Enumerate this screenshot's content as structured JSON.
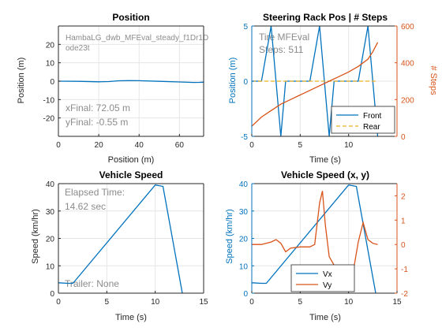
{
  "colors": {
    "blue": "#0072BD",
    "orange": "#D95319",
    "yellow": "#EDB120",
    "annot": "#8c8c8c",
    "grid": "#e6e6e6",
    "axis": "#262626"
  },
  "chart_data": [
    {
      "id": "position",
      "type": "line",
      "title": "Position",
      "xlabel": "Position (m)",
      "ylabel": "Position (m)",
      "xlim": [
        0,
        72
      ],
      "ylim": [
        -30,
        30
      ],
      "xticks": [
        0,
        20,
        40,
        60
      ],
      "yticks": [
        -20,
        -10,
        0,
        10,
        20
      ],
      "grid": true,
      "annotations": [
        "HambaLG_dwb_MFEval_steady_f1Dr1D",
        "ode23t",
        "xFinal: 72.05 m",
        "yFinal: -0.55 m"
      ],
      "series": [
        {
          "x": [
            0,
            10,
            20,
            25,
            30,
            35,
            40,
            50,
            60,
            67,
            70,
            72.05
          ],
          "y": [
            0,
            -0.1,
            -0.35,
            -0.2,
            0.2,
            0.3,
            0.25,
            -0.1,
            -0.45,
            -0.7,
            -0.65,
            -0.55
          ]
        }
      ]
    },
    {
      "id": "steering",
      "type": "line",
      "title": "Steering Rack Pos | # Steps",
      "xlabel": "Time (s)",
      "ylabel": "Position (m)",
      "ylabel_right": "# Steps",
      "xlim": [
        0,
        15
      ],
      "ylim": [
        -5,
        5
      ],
      "ylim_right": [
        0,
        600
      ],
      "xticks": [
        0,
        5,
        10
      ],
      "yticks": [
        -5,
        0,
        5
      ],
      "yticks_right": [
        0,
        200,
        400,
        600
      ],
      "grid": true,
      "annotations": [
        "Tire MFEval",
        "Steps: 511"
      ],
      "legend": {
        "location": "bottom-right",
        "entries": [
          "Front",
          "Rear"
        ]
      },
      "series": [
        {
          "name": "Front",
          "axis": "left",
          "x": [
            0,
            1,
            2,
            2.5,
            3,
            3.5,
            4,
            5,
            6,
            7,
            7.5,
            8,
            8.5,
            9,
            10,
            11,
            12,
            12.5,
            13
          ],
          "y": [
            0,
            0,
            5,
            0,
            -5,
            0,
            0,
            0,
            0,
            5,
            0,
            -5,
            0,
            0,
            0,
            0,
            5,
            0,
            -5
          ]
        },
        {
          "name": "Rear",
          "axis": "left",
          "dashed": true,
          "x": [
            0,
            13
          ],
          "y": [
            0,
            0
          ]
        },
        {
          "name": "# Steps",
          "axis": "right",
          "x": [
            0,
            1,
            2,
            3,
            4,
            5,
            6,
            7,
            8,
            9,
            10,
            11,
            12,
            12.5,
            13
          ],
          "y": [
            55,
            105,
            140,
            175,
            200,
            225,
            250,
            275,
            300,
            325,
            350,
            380,
            420,
            460,
            511
          ]
        }
      ]
    },
    {
      "id": "speed",
      "type": "line",
      "title": "Vehicle Speed",
      "xlabel": "Time (s)",
      "ylabel": "Speed (km/hr)",
      "xlim": [
        0,
        15
      ],
      "ylim": [
        0,
        40
      ],
      "xticks": [
        0,
        5,
        10,
        15
      ],
      "yticks": [
        0,
        10,
        20,
        30,
        40
      ],
      "grid": true,
      "annotations": [
        "Elapsed Time:",
        "14.62 sec",
        "Trailer: None"
      ],
      "series": [
        {
          "x": [
            0,
            1,
            1.5,
            10,
            10.8,
            12.8
          ],
          "y": [
            3.8,
            3.6,
            3.6,
            39.5,
            39,
            0
          ]
        }
      ]
    },
    {
      "id": "speedxy",
      "type": "line",
      "title": "Vehicle Speed (x, y)",
      "xlabel": "Time (s)",
      "ylabel": "Speed (km/hr)",
      "xlim": [
        0,
        15
      ],
      "ylim": [
        0,
        40
      ],
      "ylim_right": [
        -2,
        2.5
      ],
      "xticks": [
        0,
        5,
        10,
        15
      ],
      "yticks": [
        0,
        10,
        20,
        30,
        40
      ],
      "yticks_right": [
        -2,
        -1,
        0,
        1,
        2
      ],
      "grid": true,
      "legend": {
        "location": "bottom-center",
        "entries": [
          "Vx",
          "Vy"
        ]
      },
      "series": [
        {
          "name": "Vx",
          "axis": "left",
          "x": [
            0,
            1,
            1.5,
            10,
            10.8,
            12.8
          ],
          "y": [
            3.8,
            3.6,
            3.6,
            39.5,
            39,
            0
          ]
        },
        {
          "name": "Vy",
          "axis": "right",
          "x": [
            0,
            1,
            2,
            2.5,
            3,
            3.5,
            4,
            5,
            6,
            6.5,
            7,
            7.3,
            7.6,
            8,
            8.5,
            9,
            10,
            10.5,
            11,
            11.5,
            12,
            12.5,
            13
          ],
          "y": [
            0,
            0,
            0.1,
            0.2,
            0.05,
            -0.3,
            -0.15,
            -0.1,
            -0.1,
            0,
            1.7,
            2.2,
            0.8,
            -0.5,
            -0.85,
            -0.9,
            -0.9,
            -1.05,
            0.1,
            0.9,
            0.2,
            0.05,
            0
          ]
        }
      ]
    }
  ]
}
